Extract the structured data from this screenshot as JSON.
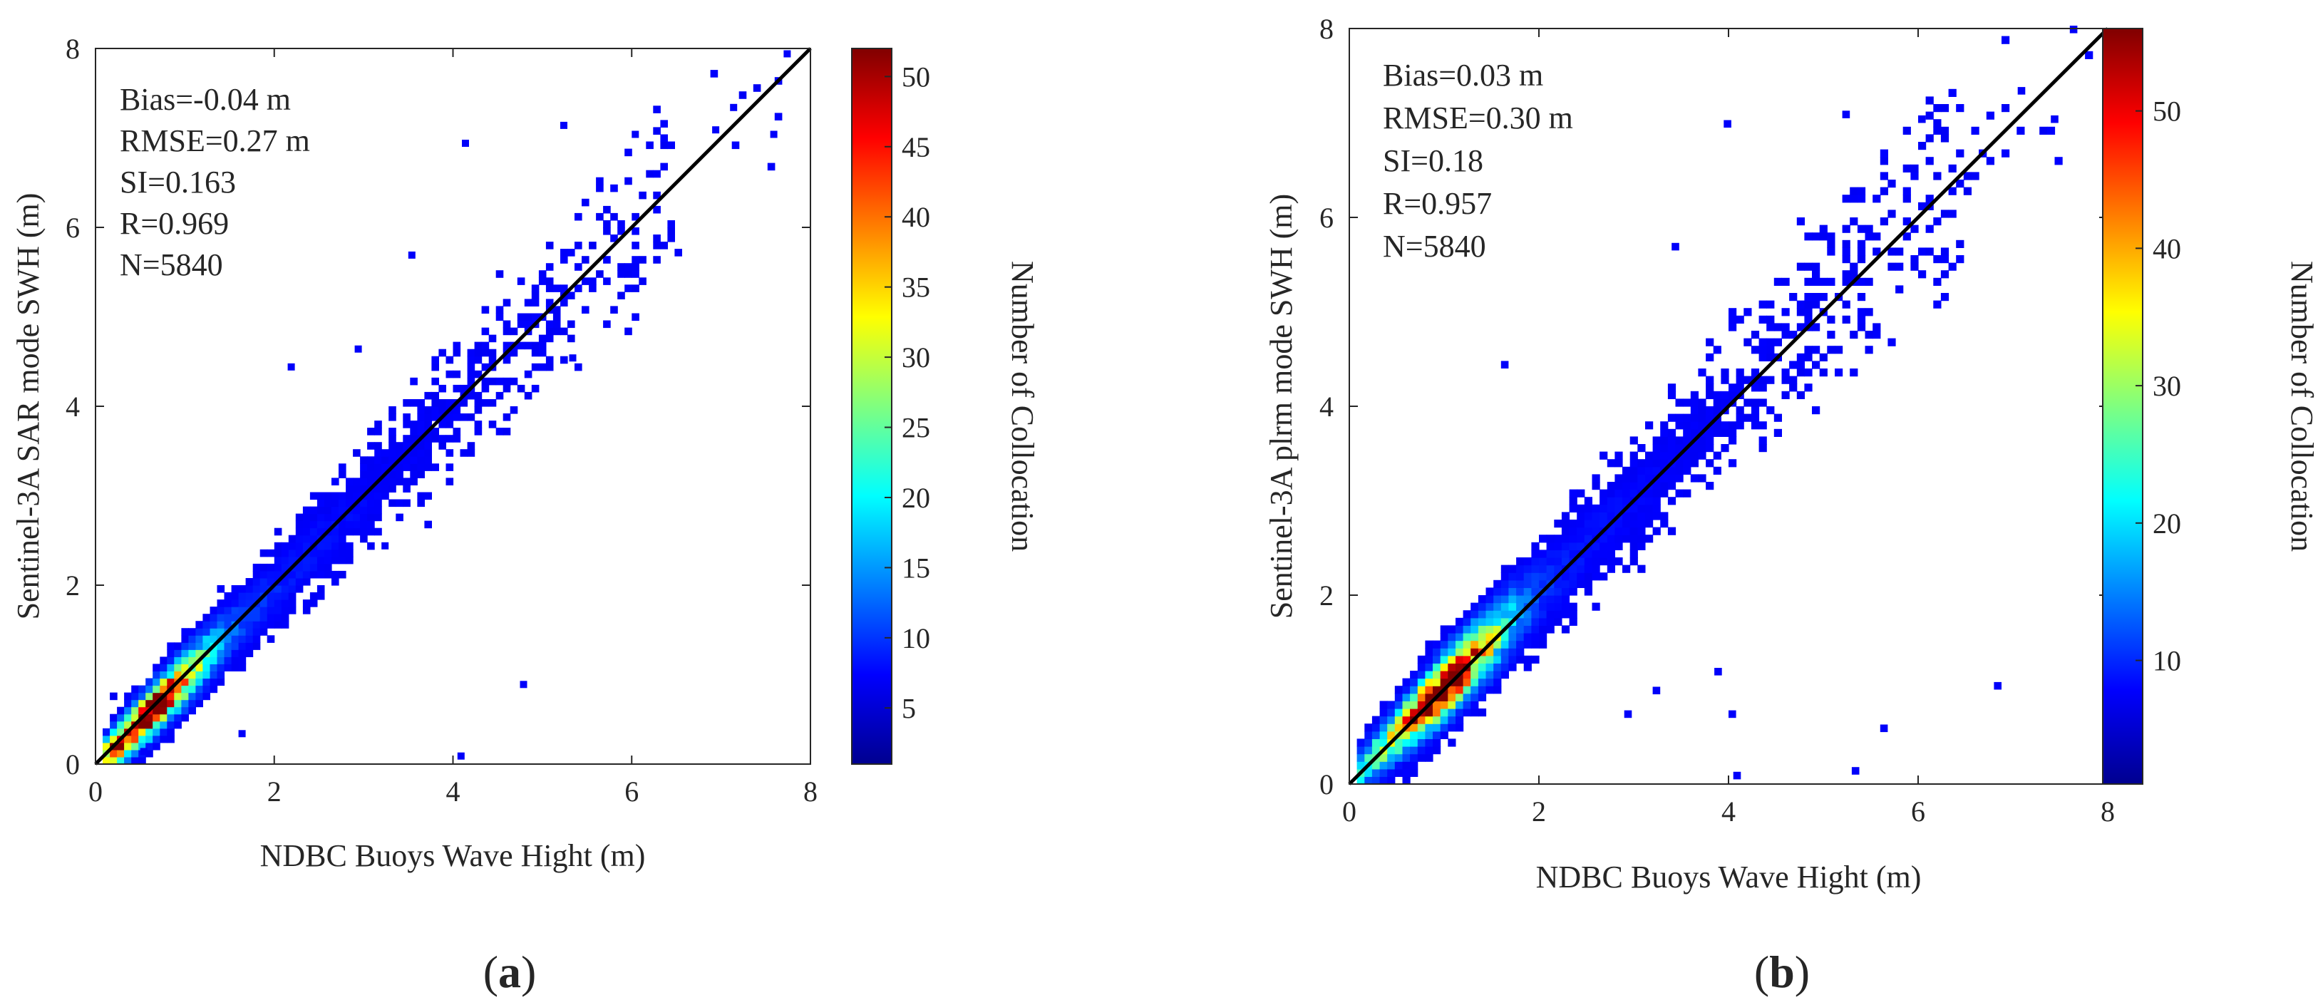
{
  "figure": {
    "panel_a_caption": {
      "open": "(",
      "letter": "a",
      "close": ")"
    },
    "panel_b_caption": {
      "open": "(",
      "letter": "b",
      "close": ")"
    }
  },
  "chart_data": [
    {
      "type": "heatmap",
      "subtype": "density scatter (2D histogram) with 1:1 reference line",
      "panel": "a",
      "xlabel": "NDBC Buoys Wave Hight (m)",
      "ylabel": "Sentinel-3A SAR mode SWH (m)",
      "xlim": [
        0,
        8
      ],
      "ylim": [
        0,
        8
      ],
      "xticks": [
        0,
        2,
        4,
        6,
        8
      ],
      "yticks": [
        0,
        2,
        4,
        6,
        8
      ],
      "grid": false,
      "reference_line": {
        "from": [
          0,
          0
        ],
        "to": [
          8,
          8
        ],
        "color": "#000000"
      },
      "stats": [
        "Bias=-0.04 m",
        "RMSE=0.27 m",
        "SI=0.163",
        "R=0.969",
        "N=5840"
      ],
      "colorbar": {
        "label": "Number of Collocation",
        "range": [
          1,
          52
        ],
        "ticks": [
          5,
          10,
          15,
          20,
          25,
          30,
          35,
          40,
          45,
          50
        ],
        "colormap": "jet"
      },
      "model": {
        "bias": -0.04,
        "n": 5840,
        "peak": [
          0.6,
          0.6
        ],
        "max_count": 52,
        "spread_base": 0.12,
        "spread_slope": 0.05
      },
      "outliers": [
        [
          7.7,
          7.9
        ],
        [
          7.55,
          7.0
        ],
        [
          7.1,
          7.3
        ],
        [
          6.9,
          7.05
        ],
        [
          6.0,
          7.0
        ],
        [
          5.2,
          7.1
        ],
        [
          4.1,
          6.9
        ],
        [
          3.5,
          5.65
        ],
        [
          2.15,
          4.4
        ],
        [
          2.9,
          4.6
        ],
        [
          4.75,
          0.85
        ],
        [
          4.05,
          0.05
        ],
        [
          5.3,
          4.5
        ],
        [
          3.2,
          2.4
        ],
        [
          1.6,
          0.3
        ],
        [
          0.5,
          0.1
        ]
      ]
    },
    {
      "type": "heatmap",
      "subtype": "density scatter (2D histogram) with 1:1 reference line",
      "panel": "b",
      "xlabel": "NDBC Buoys Wave Hight (m)",
      "ylabel": "Sentinel-3A plrm mode SWH (m)",
      "xlim": [
        0,
        8
      ],
      "ylim": [
        0,
        8
      ],
      "xticks": [
        0,
        2,
        4,
        6,
        8
      ],
      "yticks": [
        0,
        2,
        4,
        6,
        8
      ],
      "grid": false,
      "reference_line": {
        "from": [
          0,
          0
        ],
        "to": [
          8,
          8
        ],
        "color": "#000000"
      },
      "stats": [
        "Bias=0.03 m",
        "RMSE=0.30 m",
        "SI=0.18",
        "R=0.957",
        "N=5840"
      ],
      "colorbar": {
        "label": "Number of Collocation",
        "range": [
          1,
          56
        ],
        "ticks": [
          10,
          20,
          30,
          40,
          50
        ],
        "colormap": "jet"
      },
      "model": {
        "bias": 0.03,
        "n": 5840,
        "peak": [
          1.0,
          1.0
        ],
        "max_count": 56,
        "spread_base": 0.13,
        "spread_slope": 0.055
      },
      "outliers": [
        [
          7.6,
          7.95
        ],
        [
          7.4,
          7.0
        ],
        [
          7.05,
          7.3
        ],
        [
          6.8,
          1.0
        ],
        [
          6.0,
          7.0
        ],
        [
          5.6,
          0.55
        ],
        [
          5.3,
          0.1
        ],
        [
          5.2,
          7.05
        ],
        [
          3.95,
          6.95
        ],
        [
          3.4,
          5.65
        ],
        [
          1.6,
          4.4
        ],
        [
          3.85,
          1.15
        ],
        [
          4.05,
          0.05
        ],
        [
          4.0,
          0.7
        ],
        [
          3.2,
          0.95
        ],
        [
          2.9,
          0.7
        ]
      ]
    }
  ]
}
